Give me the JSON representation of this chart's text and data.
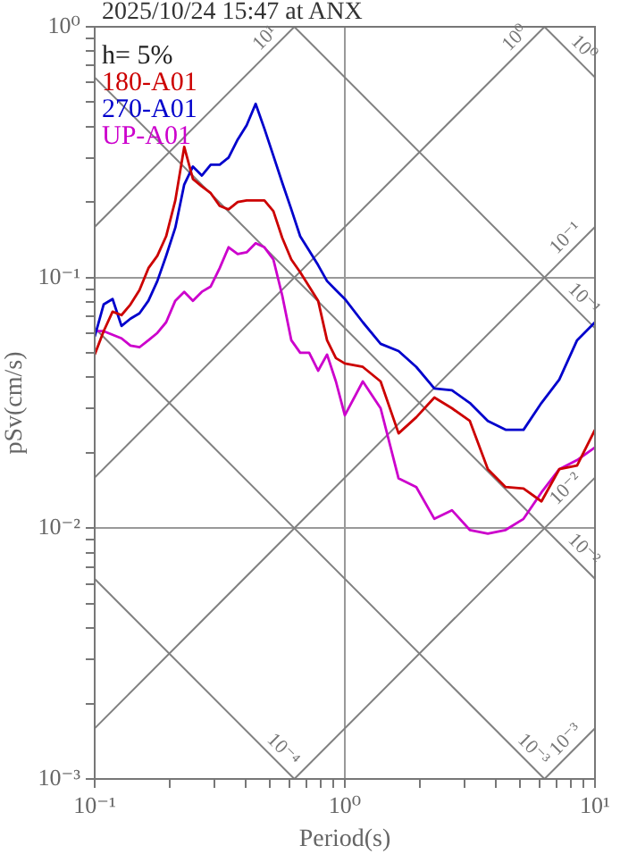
{
  "chart_data": {
    "type": "line",
    "title": "2025/10/24 15:47 at ANX",
    "xlabel": "Period(s)",
    "ylabel": "pSv(cm/s)",
    "log": "xy",
    "grid": true,
    "legend": "top left",
    "annotations": [
      "h= 5%"
    ],
    "xlim": [
      0.1,
      10
    ],
    "ylim": [
      0.001,
      1
    ],
    "xticks": [
      {
        "value": 0.1,
        "label": "10⁻¹"
      },
      {
        "value": 0.2,
        "label": null
      },
      {
        "value": 0.3,
        "label": null
      },
      {
        "value": 0.4,
        "label": null
      },
      {
        "value": 0.5,
        "label": null
      },
      {
        "value": 0.6,
        "label": null
      },
      {
        "value": 0.7,
        "label": null
      },
      {
        "value": 0.8,
        "label": null
      },
      {
        "value": 0.9,
        "label": null
      },
      {
        "value": 1,
        "label": "10⁰"
      },
      {
        "value": 2,
        "label": null
      },
      {
        "value": 3,
        "label": null
      },
      {
        "value": 4,
        "label": null
      },
      {
        "value": 5,
        "label": null
      },
      {
        "value": 6,
        "label": null
      },
      {
        "value": 7,
        "label": null
      },
      {
        "value": 8,
        "label": null
      },
      {
        "value": 9,
        "label": null
      },
      {
        "value": 10,
        "label": "10¹"
      }
    ],
    "yticks": [
      {
        "value": 0.001,
        "label": "10⁻³"
      },
      {
        "value": 0.002,
        "label": null
      },
      {
        "value": 0.003,
        "label": null
      },
      {
        "value": 0.004,
        "label": null
      },
      {
        "value": 0.005,
        "label": null
      },
      {
        "value": 0.006,
        "label": null
      },
      {
        "value": 0.007,
        "label": null
      },
      {
        "value": 0.008,
        "label": null
      },
      {
        "value": 0.009,
        "label": null
      },
      {
        "value": 0.01,
        "label": "10⁻²"
      },
      {
        "value": 0.02,
        "label": null
      },
      {
        "value": 0.03,
        "label": null
      },
      {
        "value": 0.04,
        "label": null
      },
      {
        "value": 0.05,
        "label": null
      },
      {
        "value": 0.06,
        "label": null
      },
      {
        "value": 0.07,
        "label": null
      },
      {
        "value": 0.08,
        "label": null
      },
      {
        "value": 0.09,
        "label": null
      },
      {
        "value": 0.1,
        "label": "10⁻¹"
      },
      {
        "value": 0.2,
        "label": null
      },
      {
        "value": 0.3,
        "label": null
      },
      {
        "value": 0.4,
        "label": null
      },
      {
        "value": 0.5,
        "label": null
      },
      {
        "value": 0.6,
        "label": null
      },
      {
        "value": 0.7,
        "label": null
      },
      {
        "value": 0.8,
        "label": null
      },
      {
        "value": 0.9,
        "label": null
      },
      {
        "value": 1,
        "label": "10⁰"
      }
    ],
    "x": [
      0.1,
      0.1086,
      0.1179,
      0.128,
      0.139,
      0.151,
      0.164,
      0.178,
      0.193,
      0.21,
      0.228,
      0.247,
      0.268,
      0.291,
      0.316,
      0.343,
      0.373,
      0.405,
      0.44,
      0.477,
      0.518,
      0.562,
      0.611,
      0.663,
      0.72,
      0.782,
      0.849,
      0.921,
      1,
      1.18,
      1.39,
      1.64,
      1.93,
      2.28,
      2.68,
      3.16,
      3.73,
      4.39,
      5.18,
      6.11,
      7.2,
      8.48,
      10
    ],
    "series": [
      {
        "name": "180-A01",
        "color": "#cc0000",
        "values": [
          0.0493,
          0.0611,
          0.0731,
          0.0708,
          0.0781,
          0.0891,
          0.109,
          0.122,
          0.146,
          0.203,
          0.332,
          0.247,
          0.231,
          0.217,
          0.193,
          0.187,
          0.2,
          0.203,
          0.203,
          0.203,
          0.184,
          0.144,
          0.118,
          0.105,
          0.0921,
          0.0808,
          0.0562,
          0.0477,
          0.0454,
          0.044,
          0.0385,
          0.0239,
          0.0277,
          0.0332,
          0.0301,
          0.0268,
          0.0172,
          0.0146,
          0.0144,
          0.0128,
          0.0172,
          0.0178,
          0.0247
        ]
      },
      {
        "name": "270-A01",
        "color": "#0000cc",
        "values": [
          0.0581,
          0.0781,
          0.0821,
          0.0641,
          0.0685,
          0.072,
          0.0808,
          0.0968,
          0.122,
          0.158,
          0.235,
          0.277,
          0.255,
          0.282,
          0.282,
          0.301,
          0.355,
          0.405,
          0.493,
          0.392,
          0.306,
          0.239,
          0.187,
          0.146,
          0.128,
          0.112,
          0.0968,
          0.0891,
          0.0821,
          0.0663,
          0.0544,
          0.0509,
          0.044,
          0.0361,
          0.0355,
          0.0316,
          0.0268,
          0.0247,
          0.0247,
          0.0316,
          0.0392,
          0.0562,
          0.0663
        ]
      },
      {
        "name": "UP-A01",
        "color": "#cc00cc",
        "values": [
          0.0611,
          0.0611,
          0.0591,
          0.0572,
          0.0535,
          0.0527,
          0.0562,
          0.0601,
          0.0663,
          0.0808,
          0.0877,
          0.0808,
          0.0877,
          0.0921,
          0.109,
          0.132,
          0.124,
          0.126,
          0.137,
          0.132,
          0.118,
          0.0848,
          0.0562,
          0.0501,
          0.0501,
          0.0425,
          0.0493,
          0.0385,
          0.0282,
          0.0385,
          0.0301,
          0.0158,
          0.0146,
          0.0109,
          0.0118,
          0.00984,
          0.00952,
          0.00984,
          0.0109,
          0.0139,
          0.0172,
          0.0187,
          0.021
        ]
      },
      {
        "name": "10¹",
        "color": "#808080",
        "x": [
          0.1,
          0.6283
        ],
        "values": [
          0.1592,
          1
        ]
      },
      {
        "name": "10⁰",
        "color": "#808080",
        "x": [
          0.1,
          6.283
        ],
        "values": [
          0.01592,
          1
        ]
      },
      {
        "name": "10⁻¹",
        "color": "#808080",
        "x": [
          0.1,
          10
        ],
        "values": [
          0.001592,
          0.1592
        ]
      },
      {
        "name": "10⁻²",
        "color": "#808080",
        "x": [
          0.6283,
          10
        ],
        "values": [
          0.001,
          0.01592
        ]
      },
      {
        "name": "10⁻³",
        "color": "#808080",
        "x": [
          6.283,
          10
        ],
        "values": [
          0.001,
          0.001592
        ]
      },
      {
        "name": "10⁰",
        "color": "#808080",
        "x": [
          6.283,
          10
        ],
        "values": [
          1,
          0.6283
        ]
      },
      {
        "name": "10⁻¹",
        "color": "#808080",
        "x": [
          0.6283,
          10
        ],
        "values": [
          1,
          0.06283
        ]
      },
      {
        "name": "10⁻²",
        "color": "#808080",
        "x": [
          0.1,
          10
        ],
        "values": [
          0.6283,
          0.006283
        ]
      },
      {
        "name": "10⁻³",
        "color": "#808080",
        "x": [
          0.1,
          6.283
        ],
        "values": [
          0.06283,
          0.001
        ]
      },
      {
        "name": "10⁻⁴",
        "color": "#808080",
        "x": [
          0.1,
          0.6283
        ],
        "values": [
          0.006283,
          0.001
        ]
      }
    ]
  }
}
